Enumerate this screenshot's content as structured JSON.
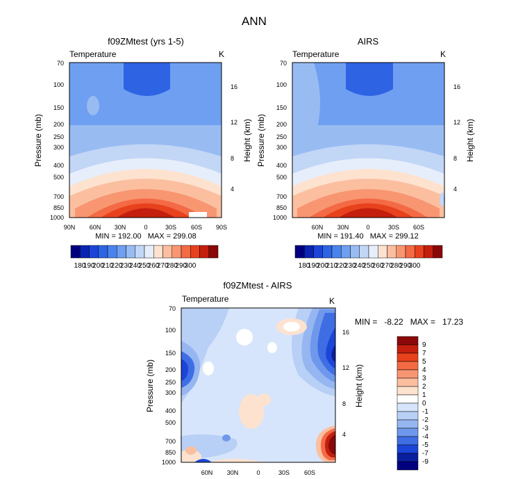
{
  "page": {
    "title": "ANN"
  },
  "chart_data": [
    {
      "type": "heatmap",
      "title": "f09ZMtest (yrs 1-5)",
      "left_label": "Temperature",
      "units": "K",
      "ylabel": "Pressure (mb)",
      "y2label": "Height (km)",
      "y_ticks": [
        "70",
        "100",
        "150",
        "200",
        "250",
        "300",
        "400",
        "500",
        "700",
        "850",
        "1000"
      ],
      "y2_ticks": [
        "16",
        "12",
        "8",
        "4"
      ],
      "x_ticks": [
        "90N",
        "60N",
        "30N",
        "0",
        "30S",
        "60S",
        "90S"
      ],
      "min_max": "MIN = 192.00   MAX = 299.08",
      "colorbar_labels": [
        "180",
        "190",
        "200",
        "210",
        "220",
        "230",
        "240",
        "250",
        "260",
        "270",
        "280",
        "290",
        "300"
      ]
    },
    {
      "type": "heatmap",
      "title": "AIRS",
      "left_label": "Temperature",
      "units": "K",
      "ylabel": "Pressure (mb)",
      "y2label": "Height (km)",
      "y_ticks": [
        "70",
        "100",
        "150",
        "200",
        "250",
        "300",
        "400",
        "500",
        "700",
        "850",
        "1000"
      ],
      "y2_ticks": [
        "16",
        "12",
        "8",
        "4"
      ],
      "x_ticks": [
        "60N",
        "30N",
        "0",
        "30S",
        "60S"
      ],
      "min_max": "MIN = 191.40   MAX = 299.12",
      "colorbar_labels": [
        "180",
        "190",
        "200",
        "210",
        "220",
        "230",
        "240",
        "250",
        "260",
        "270",
        "280",
        "290",
        "300"
      ]
    },
    {
      "type": "heatmap",
      "title": "f09ZMtest - AIRS",
      "left_label": "Temperature",
      "units": "K",
      "ylabel": "Pressure (mb)",
      "y2label": "Height (km)",
      "y_ticks": [
        "70",
        "100",
        "150",
        "200",
        "250",
        "300",
        "400",
        "500",
        "700",
        "850",
        "1000"
      ],
      "y2_ticks": [
        "16",
        "12",
        "8",
        "4"
      ],
      "x_ticks": [
        "60N",
        "30N",
        "0",
        "30S",
        "60S"
      ],
      "min_max": "MIN =   -8.22   MAX =   17.23",
      "colorbar_labels": [
        "9",
        "7",
        "5",
        "4",
        "3",
        "2",
        "1",
        "0",
        "-1",
        "-2",
        "-3",
        "-4",
        "-5",
        "-7",
        "-9"
      ]
    }
  ],
  "palettes": {
    "abs": [
      "#00007f",
      "#0a24b4",
      "#1c45d8",
      "#2e63e4",
      "#4a82ec",
      "#6f9ff0",
      "#98bcf2",
      "#c2d6f6",
      "#e6eefc",
      "#fde2cf",
      "#fbbfa0",
      "#f89672",
      "#f36a44",
      "#e8411e",
      "#c41f0e",
      "#8a0808"
    ],
    "diff": [
      "#8a0808",
      "#c41f0e",
      "#e8411e",
      "#f36a44",
      "#f89672",
      "#fbbfa0",
      "#fde2cf",
      "#ffffff",
      "#d6e5fb",
      "#b8cff6",
      "#96b6f1",
      "#6f98ec",
      "#3f6ee4",
      "#1c45d8",
      "#0a1f9e",
      "#00007f"
    ]
  }
}
